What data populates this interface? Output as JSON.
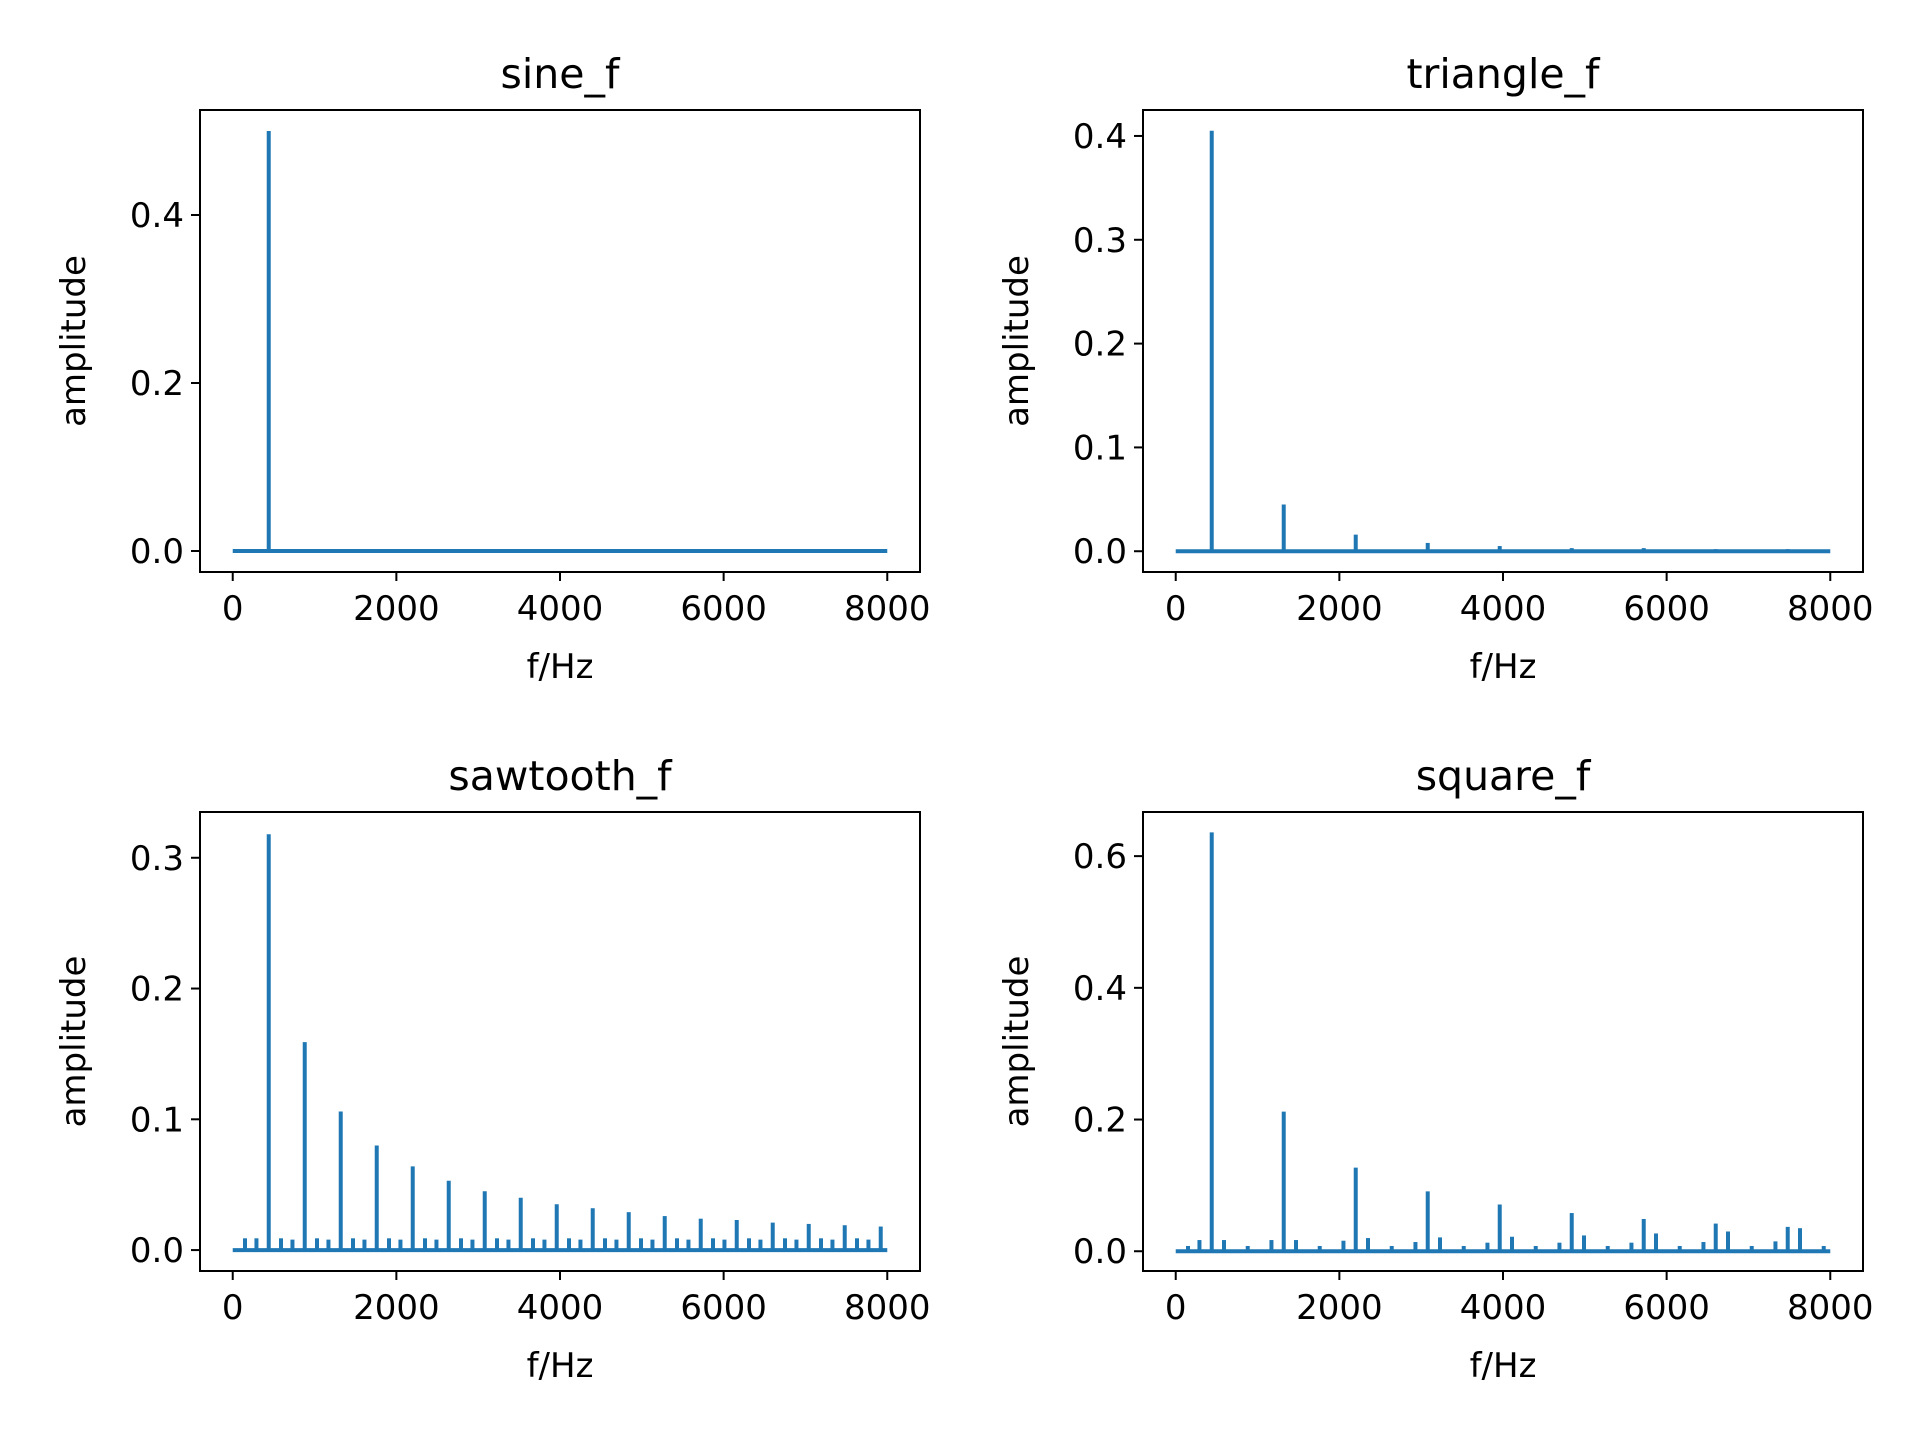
{
  "figure": {
    "line_color": "#1f77b4",
    "axis_color": "#000000",
    "background": "#ffffff"
  },
  "chart_data": [
    {
      "type": "line",
      "title": "sine_f",
      "xlabel": "f/Hz",
      "ylabel": "amplitude",
      "xlim": [
        -400,
        8400
      ],
      "ylim": [
        -0.025,
        0.525
      ],
      "xticks": [
        "0",
        "2000",
        "4000",
        "6000",
        "8000"
      ],
      "yticks": [
        "0.0",
        "0.2",
        "0.4"
      ],
      "grid": false,
      "x_range": [
        0,
        8000
      ],
      "baseline": 0.0,
      "peaks": [
        {
          "f": 440,
          "amplitude": 0.5
        }
      ]
    },
    {
      "type": "line",
      "title": "triangle_f",
      "xlabel": "f/Hz",
      "ylabel": "amplitude",
      "xlim": [
        -400,
        8400
      ],
      "ylim": [
        -0.02,
        0.425
      ],
      "xticks": [
        "0",
        "2000",
        "4000",
        "6000",
        "8000"
      ],
      "yticks": [
        "0.0",
        "0.1",
        "0.2",
        "0.3",
        "0.4"
      ],
      "grid": false,
      "x_range": [
        0,
        8000
      ],
      "baseline": 0.0,
      "peaks": [
        {
          "f": 440,
          "amplitude": 0.405
        },
        {
          "f": 1320,
          "amplitude": 0.045
        },
        {
          "f": 2200,
          "amplitude": 0.016
        },
        {
          "f": 3080,
          "amplitude": 0.008
        },
        {
          "f": 3960,
          "amplitude": 0.005
        },
        {
          "f": 4840,
          "amplitude": 0.003
        },
        {
          "f": 5720,
          "amplitude": 0.003
        },
        {
          "f": 6600,
          "amplitude": 0.002
        },
        {
          "f": 7480,
          "amplitude": 0.002
        }
      ]
    },
    {
      "type": "line",
      "title": "sawtooth_f",
      "xlabel": "f/Hz",
      "ylabel": "amplitude",
      "xlim": [
        -400,
        8400
      ],
      "ylim": [
        -0.016,
        0.335
      ],
      "xticks": [
        "0",
        "2000",
        "4000",
        "6000",
        "8000"
      ],
      "yticks": [
        "0.0",
        "0.1",
        "0.2",
        "0.3"
      ],
      "grid": false,
      "x_range": [
        0,
        8000
      ],
      "baseline": 0.0,
      "peaks": [
        {
          "f": 440,
          "amplitude": 0.318
        },
        {
          "f": 880,
          "amplitude": 0.159
        },
        {
          "f": 1320,
          "amplitude": 0.106
        },
        {
          "f": 1760,
          "amplitude": 0.08
        },
        {
          "f": 2200,
          "amplitude": 0.064
        },
        {
          "f": 2640,
          "amplitude": 0.053
        },
        {
          "f": 3080,
          "amplitude": 0.045
        },
        {
          "f": 3520,
          "amplitude": 0.04
        },
        {
          "f": 3960,
          "amplitude": 0.035
        },
        {
          "f": 4400,
          "amplitude": 0.032
        },
        {
          "f": 4840,
          "amplitude": 0.029
        },
        {
          "f": 5280,
          "amplitude": 0.026
        },
        {
          "f": 5720,
          "amplitude": 0.024
        },
        {
          "f": 6160,
          "amplitude": 0.023
        },
        {
          "f": 6600,
          "amplitude": 0.021
        },
        {
          "f": 7040,
          "amplitude": 0.02
        },
        {
          "f": 7480,
          "amplitude": 0.019
        },
        {
          "f": 7920,
          "amplitude": 0.018
        }
      ],
      "side_peaks": [
        {
          "f": 150,
          "amplitude": 0.009
        },
        {
          "f": 290,
          "amplitude": 0.009
        },
        {
          "f": 590,
          "amplitude": 0.009
        },
        {
          "f": 730,
          "amplitude": 0.008
        },
        {
          "f": 1030,
          "amplitude": 0.009
        },
        {
          "f": 1170,
          "amplitude": 0.008
        },
        {
          "f": 1470,
          "amplitude": 0.009
        },
        {
          "f": 1610,
          "amplitude": 0.008
        },
        {
          "f": 1910,
          "amplitude": 0.009
        },
        {
          "f": 2050,
          "amplitude": 0.008
        },
        {
          "f": 2350,
          "amplitude": 0.009
        },
        {
          "f": 2490,
          "amplitude": 0.008
        },
        {
          "f": 2790,
          "amplitude": 0.009
        },
        {
          "f": 2930,
          "amplitude": 0.008
        },
        {
          "f": 3230,
          "amplitude": 0.009
        },
        {
          "f": 3370,
          "amplitude": 0.008
        },
        {
          "f": 3670,
          "amplitude": 0.009
        },
        {
          "f": 3810,
          "amplitude": 0.008
        },
        {
          "f": 4110,
          "amplitude": 0.009
        },
        {
          "f": 4250,
          "amplitude": 0.008
        },
        {
          "f": 4550,
          "amplitude": 0.009
        },
        {
          "f": 4690,
          "amplitude": 0.008
        },
        {
          "f": 4990,
          "amplitude": 0.009
        },
        {
          "f": 5130,
          "amplitude": 0.008
        },
        {
          "f": 5430,
          "amplitude": 0.009
        },
        {
          "f": 5570,
          "amplitude": 0.008
        },
        {
          "f": 5870,
          "amplitude": 0.009
        },
        {
          "f": 6010,
          "amplitude": 0.008
        },
        {
          "f": 6310,
          "amplitude": 0.009
        },
        {
          "f": 6450,
          "amplitude": 0.008
        },
        {
          "f": 6750,
          "amplitude": 0.009
        },
        {
          "f": 6890,
          "amplitude": 0.008
        },
        {
          "f": 7190,
          "amplitude": 0.009
        },
        {
          "f": 7330,
          "amplitude": 0.008
        },
        {
          "f": 7630,
          "amplitude": 0.009
        },
        {
          "f": 7770,
          "amplitude": 0.008
        }
      ]
    },
    {
      "type": "line",
      "title": "square_f",
      "xlabel": "f/Hz",
      "ylabel": "amplitude",
      "xlim": [
        -400,
        8400
      ],
      "ylim": [
        -0.03,
        0.667
      ],
      "xticks": [
        "0",
        "2000",
        "4000",
        "6000",
        "8000"
      ],
      "yticks": [
        "0.0",
        "0.2",
        "0.4",
        "0.6"
      ],
      "grid": false,
      "x_range": [
        0,
        8000
      ],
      "baseline": 0.0,
      "peaks": [
        {
          "f": 440,
          "amplitude": 0.636
        },
        {
          "f": 1320,
          "amplitude": 0.212
        },
        {
          "f": 2200,
          "amplitude": 0.127
        },
        {
          "f": 3080,
          "amplitude": 0.091
        },
        {
          "f": 3960,
          "amplitude": 0.071
        },
        {
          "f": 4840,
          "amplitude": 0.058
        },
        {
          "f": 5720,
          "amplitude": 0.049
        },
        {
          "f": 6600,
          "amplitude": 0.042
        },
        {
          "f": 7480,
          "amplitude": 0.037
        }
      ],
      "side_peaks": [
        {
          "f": 290,
          "amplitude": 0.017
        },
        {
          "f": 590,
          "amplitude": 0.017
        },
        {
          "f": 1170,
          "amplitude": 0.017
        },
        {
          "f": 1470,
          "amplitude": 0.017
        },
        {
          "f": 2050,
          "amplitude": 0.016
        },
        {
          "f": 2350,
          "amplitude": 0.02
        },
        {
          "f": 2930,
          "amplitude": 0.014
        },
        {
          "f": 3230,
          "amplitude": 0.021
        },
        {
          "f": 3810,
          "amplitude": 0.013
        },
        {
          "f": 4110,
          "amplitude": 0.022
        },
        {
          "f": 4690,
          "amplitude": 0.013
        },
        {
          "f": 4990,
          "amplitude": 0.024
        },
        {
          "f": 5570,
          "amplitude": 0.013
        },
        {
          "f": 5870,
          "amplitude": 0.027
        },
        {
          "f": 6450,
          "amplitude": 0.014
        },
        {
          "f": 6750,
          "amplitude": 0.03
        },
        {
          "f": 7330,
          "amplitude": 0.015
        },
        {
          "f": 7630,
          "amplitude": 0.035
        },
        {
          "f": 150,
          "amplitude": 0.008
        },
        {
          "f": 880,
          "amplitude": 0.008
        },
        {
          "f": 1760,
          "amplitude": 0.008
        },
        {
          "f": 2640,
          "amplitude": 0.008
        },
        {
          "f": 3520,
          "amplitude": 0.008
        },
        {
          "f": 4400,
          "amplitude": 0.008
        },
        {
          "f": 5280,
          "amplitude": 0.008
        },
        {
          "f": 6160,
          "amplitude": 0.008
        },
        {
          "f": 7040,
          "amplitude": 0.008
        },
        {
          "f": 7920,
          "amplitude": 0.008
        }
      ]
    }
  ]
}
